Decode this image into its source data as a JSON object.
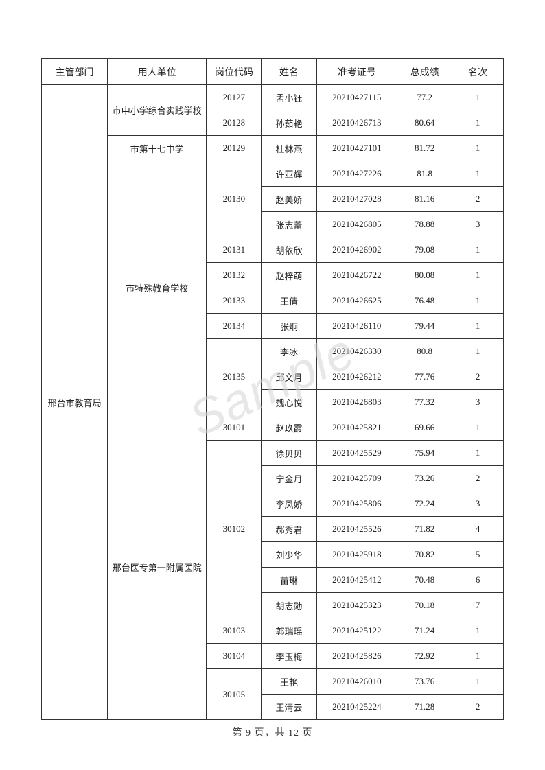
{
  "watermark": "Sample",
  "footer": "第 9 页，共 12 页",
  "headers": {
    "dept": "主管部门",
    "org": "用人单位",
    "post": "岗位代码",
    "name": "姓名",
    "exam": "准考证号",
    "score": "总成绩",
    "rank": "名次"
  },
  "dept_label": "邢台市教育局",
  "orgs": {
    "org1": "市中小学综合实践学校",
    "org2": "市第十七中学",
    "org3": "市特殊教育学校",
    "org4": "邢台医专第一附属医院"
  },
  "rows": [
    {
      "post": "20127",
      "name": "孟小钰",
      "exam": "20210427115",
      "score": "77.2",
      "rank": "1"
    },
    {
      "post": "20128",
      "name": "孙茹艳",
      "exam": "20210426713",
      "score": "80.64",
      "rank": "1"
    },
    {
      "post": "20129",
      "name": "杜林燕",
      "exam": "20210427101",
      "score": "81.72",
      "rank": "1"
    },
    {
      "post": "20130",
      "name": "许亚辉",
      "exam": "20210427226",
      "score": "81.8",
      "rank": "1"
    },
    {
      "post": "",
      "name": "赵美娇",
      "exam": "20210427028",
      "score": "81.16",
      "rank": "2"
    },
    {
      "post": "",
      "name": "张志蕾",
      "exam": "20210426805",
      "score": "78.88",
      "rank": "3"
    },
    {
      "post": "20131",
      "name": "胡依欣",
      "exam": "20210426902",
      "score": "79.08",
      "rank": "1"
    },
    {
      "post": "20132",
      "name": "赵梓萌",
      "exam": "20210426722",
      "score": "80.08",
      "rank": "1"
    },
    {
      "post": "20133",
      "name": "王倩",
      "exam": "20210426625",
      "score": "76.48",
      "rank": "1"
    },
    {
      "post": "20134",
      "name": "张炯",
      "exam": "20210426110",
      "score": "79.44",
      "rank": "1"
    },
    {
      "post": "20135",
      "name": "李冰",
      "exam": "20210426330",
      "score": "80.8",
      "rank": "1"
    },
    {
      "post": "",
      "name": "邱文月",
      "exam": "20210426212",
      "score": "77.76",
      "rank": "2"
    },
    {
      "post": "",
      "name": "魏心悦",
      "exam": "20210426803",
      "score": "77.32",
      "rank": "3"
    },
    {
      "post": "30101",
      "name": "赵玖霞",
      "exam": "20210425821",
      "score": "69.66",
      "rank": "1"
    },
    {
      "post": "30102",
      "name": "徐贝贝",
      "exam": "20210425529",
      "score": "75.94",
      "rank": "1"
    },
    {
      "post": "",
      "name": "宁金月",
      "exam": "20210425709",
      "score": "73.26",
      "rank": "2"
    },
    {
      "post": "",
      "name": "李凤娇",
      "exam": "20210425806",
      "score": "72.24",
      "rank": "3"
    },
    {
      "post": "",
      "name": "郝秀君",
      "exam": "20210425526",
      "score": "71.82",
      "rank": "4"
    },
    {
      "post": "",
      "name": "刘少华",
      "exam": "20210425918",
      "score": "70.82",
      "rank": "5"
    },
    {
      "post": "",
      "name": "苗琳",
      "exam": "20210425412",
      "score": "70.48",
      "rank": "6"
    },
    {
      "post": "",
      "name": "胡志勋",
      "exam": "20210425323",
      "score": "70.18",
      "rank": "7"
    },
    {
      "post": "30103",
      "name": "郭瑞瑶",
      "exam": "20210425122",
      "score": "71.24",
      "rank": "1"
    },
    {
      "post": "30104",
      "name": "李玉梅",
      "exam": "20210425826",
      "score": "72.92",
      "rank": "1"
    },
    {
      "post": "30105",
      "name": "王艳",
      "exam": "20210426010",
      "score": "73.76",
      "rank": "1"
    },
    {
      "post": "",
      "name": "王清云",
      "exam": "20210425224",
      "score": "71.28",
      "rank": "2"
    }
  ]
}
